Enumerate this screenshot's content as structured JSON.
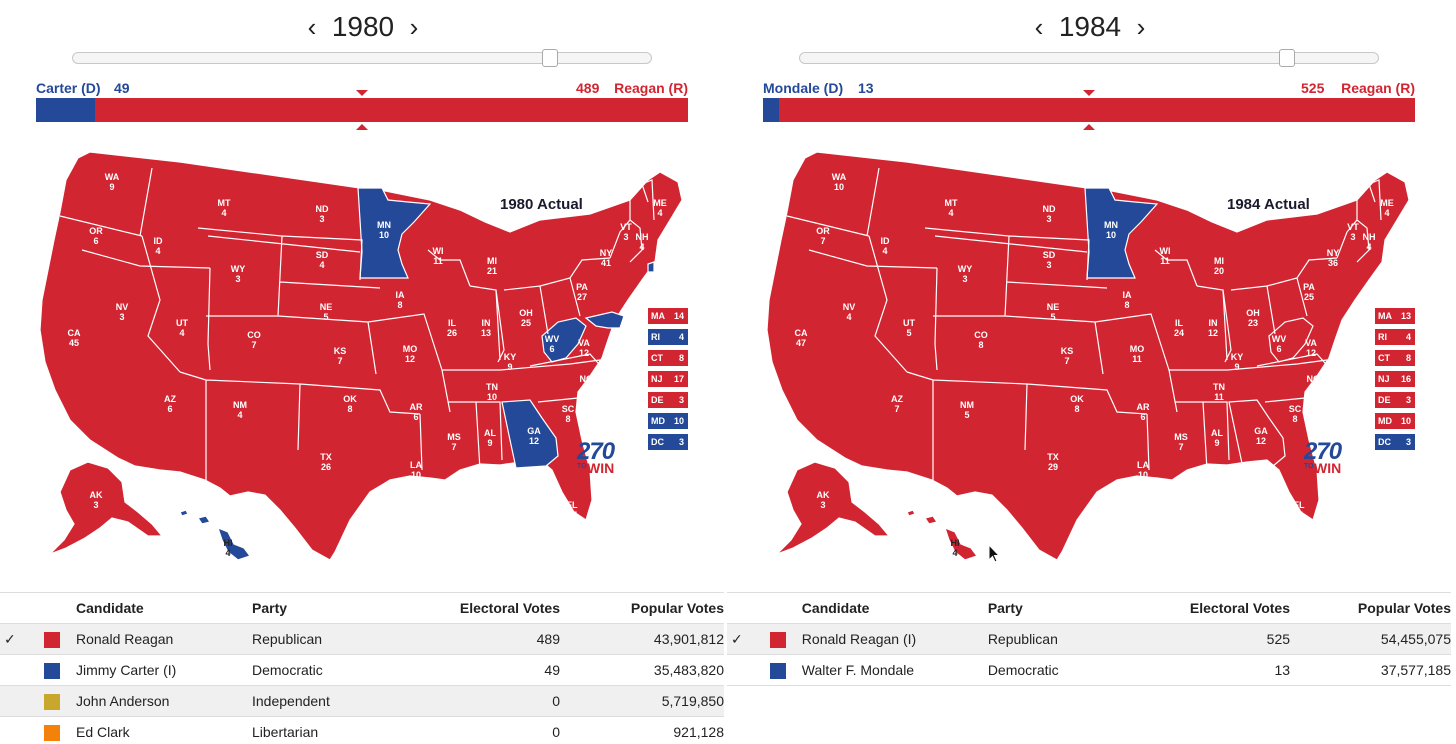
{
  "colors": {
    "rep": "#d22532",
    "dem": "#244999",
    "ind": "#c8a82c",
    "lib": "#f4820a"
  },
  "panels": [
    {
      "year": "1980",
      "prev_icon": "chevron-left-icon",
      "next_icon": "chevron-right-icon",
      "slider_value": 0.83,
      "dem_label": "Carter (D)",
      "dem_ev": "49",
      "rep_ev": "489",
      "rep_label": "Reagan (R)",
      "map_title": "1980 Actual",
      "tiles": [
        {
          "abbr": "MA",
          "ev": "14",
          "party": "rep"
        },
        {
          "abbr": "RI",
          "ev": "4",
          "party": "dem"
        },
        {
          "abbr": "CT",
          "ev": "8",
          "party": "rep"
        },
        {
          "abbr": "NJ",
          "ev": "17",
          "party": "rep"
        },
        {
          "abbr": "DE",
          "ev": "3",
          "party": "rep"
        },
        {
          "abbr": "MD",
          "ev": "10",
          "party": "dem"
        },
        {
          "abbr": "DC",
          "ev": "3",
          "party": "dem"
        }
      ],
      "states": [
        {
          "abbr": "WA",
          "ev": "9"
        },
        {
          "abbr": "OR",
          "ev": "6"
        },
        {
          "abbr": "CA",
          "ev": "45"
        },
        {
          "abbr": "ID",
          "ev": "4"
        },
        {
          "abbr": "NV",
          "ev": "3"
        },
        {
          "abbr": "MT",
          "ev": "4"
        },
        {
          "abbr": "WY",
          "ev": "3"
        },
        {
          "abbr": "UT",
          "ev": "4"
        },
        {
          "abbr": "AZ",
          "ev": "6"
        },
        {
          "abbr": "CO",
          "ev": "7"
        },
        {
          "abbr": "NM",
          "ev": "4"
        },
        {
          "abbr": "ND",
          "ev": "3"
        },
        {
          "abbr": "SD",
          "ev": "4"
        },
        {
          "abbr": "NE",
          "ev": "5"
        },
        {
          "abbr": "KS",
          "ev": "7"
        },
        {
          "abbr": "OK",
          "ev": "8"
        },
        {
          "abbr": "TX",
          "ev": "26"
        },
        {
          "abbr": "MN",
          "ev": "10",
          "dem": true
        },
        {
          "abbr": "IA",
          "ev": "8"
        },
        {
          "abbr": "MO",
          "ev": "12"
        },
        {
          "abbr": "AR",
          "ev": "6"
        },
        {
          "abbr": "LA",
          "ev": "10"
        },
        {
          "abbr": "WI",
          "ev": "11"
        },
        {
          "abbr": "IL",
          "ev": "26"
        },
        {
          "abbr": "MI",
          "ev": "21"
        },
        {
          "abbr": "IN",
          "ev": "13"
        },
        {
          "abbr": "OH",
          "ev": "25"
        },
        {
          "abbr": "KY",
          "ev": "9"
        },
        {
          "abbr": "TN",
          "ev": "10"
        },
        {
          "abbr": "MS",
          "ev": "7"
        },
        {
          "abbr": "AL",
          "ev": "9"
        },
        {
          "abbr": "GA",
          "ev": "12",
          "dem": true
        },
        {
          "abbr": "FL",
          "ev": "17"
        },
        {
          "abbr": "SC",
          "ev": "8"
        },
        {
          "abbr": "NC",
          "ev": "13"
        },
        {
          "abbr": "VA",
          "ev": "12"
        },
        {
          "abbr": "WV",
          "ev": "6",
          "dem": true
        },
        {
          "abbr": "PA",
          "ev": "27"
        },
        {
          "abbr": "NY",
          "ev": "41"
        },
        {
          "abbr": "VT",
          "ev": "3"
        },
        {
          "abbr": "NH",
          "ev": "4"
        },
        {
          "abbr": "ME",
          "ev": "4"
        },
        {
          "abbr": "AK",
          "ev": "3"
        },
        {
          "abbr": "HI",
          "ev": "4",
          "dem": true
        }
      ],
      "table": {
        "headers": [
          "Candidate",
          "Party",
          "Electoral Votes",
          "Popular Votes"
        ],
        "rows": [
          {
            "check": "✓",
            "party_key": "rep",
            "candidate": "Ronald Reagan",
            "party": "Republican",
            "ev": "489",
            "pop": "43,901,812"
          },
          {
            "check": "",
            "party_key": "dem",
            "candidate": "Jimmy Carter (I)",
            "party": "Democratic",
            "ev": "49",
            "pop": "35,483,820"
          },
          {
            "check": "",
            "party_key": "ind",
            "candidate": "John Anderson",
            "party": "Independent",
            "ev": "0",
            "pop": "5,719,850"
          },
          {
            "check": "",
            "party_key": "lib",
            "candidate": "Ed Clark",
            "party": "Libertarian",
            "ev": "0",
            "pop": "921,128"
          }
        ]
      }
    },
    {
      "year": "1984",
      "prev_icon": "chevron-left-icon",
      "next_icon": "chevron-right-icon",
      "slider_value": 0.86,
      "dem_label": "Mondale (D)",
      "dem_ev": "13",
      "rep_ev": "525",
      "rep_label": "Reagan (R)",
      "map_title": "1984 Actual",
      "tiles": [
        {
          "abbr": "MA",
          "ev": "13",
          "party": "rep"
        },
        {
          "abbr": "RI",
          "ev": "4",
          "party": "rep"
        },
        {
          "abbr": "CT",
          "ev": "8",
          "party": "rep"
        },
        {
          "abbr": "NJ",
          "ev": "16",
          "party": "rep"
        },
        {
          "abbr": "DE",
          "ev": "3",
          "party": "rep"
        },
        {
          "abbr": "MD",
          "ev": "10",
          "party": "rep"
        },
        {
          "abbr": "DC",
          "ev": "3",
          "party": "dem"
        }
      ],
      "states": [
        {
          "abbr": "WA",
          "ev": "10"
        },
        {
          "abbr": "OR",
          "ev": "7"
        },
        {
          "abbr": "CA",
          "ev": "47"
        },
        {
          "abbr": "ID",
          "ev": "4"
        },
        {
          "abbr": "NV",
          "ev": "4"
        },
        {
          "abbr": "MT",
          "ev": "4"
        },
        {
          "abbr": "WY",
          "ev": "3"
        },
        {
          "abbr": "UT",
          "ev": "5"
        },
        {
          "abbr": "AZ",
          "ev": "7"
        },
        {
          "abbr": "CO",
          "ev": "8"
        },
        {
          "abbr": "NM",
          "ev": "5"
        },
        {
          "abbr": "ND",
          "ev": "3"
        },
        {
          "abbr": "SD",
          "ev": "3"
        },
        {
          "abbr": "NE",
          "ev": "5"
        },
        {
          "abbr": "KS",
          "ev": "7"
        },
        {
          "abbr": "OK",
          "ev": "8"
        },
        {
          "abbr": "TX",
          "ev": "29"
        },
        {
          "abbr": "MN",
          "ev": "10",
          "dem": true
        },
        {
          "abbr": "IA",
          "ev": "8"
        },
        {
          "abbr": "MO",
          "ev": "11"
        },
        {
          "abbr": "AR",
          "ev": "6"
        },
        {
          "abbr": "LA",
          "ev": "10"
        },
        {
          "abbr": "WI",
          "ev": "11"
        },
        {
          "abbr": "IL",
          "ev": "24"
        },
        {
          "abbr": "MI",
          "ev": "20"
        },
        {
          "abbr": "IN",
          "ev": "12"
        },
        {
          "abbr": "OH",
          "ev": "23"
        },
        {
          "abbr": "KY",
          "ev": "9"
        },
        {
          "abbr": "TN",
          "ev": "11"
        },
        {
          "abbr": "MS",
          "ev": "7"
        },
        {
          "abbr": "AL",
          "ev": "9"
        },
        {
          "abbr": "GA",
          "ev": "12"
        },
        {
          "abbr": "FL",
          "ev": "21"
        },
        {
          "abbr": "SC",
          "ev": "8"
        },
        {
          "abbr": "NC",
          "ev": "13"
        },
        {
          "abbr": "VA",
          "ev": "12"
        },
        {
          "abbr": "WV",
          "ev": "6"
        },
        {
          "abbr": "PA",
          "ev": "25"
        },
        {
          "abbr": "NY",
          "ev": "36"
        },
        {
          "abbr": "VT",
          "ev": "3"
        },
        {
          "abbr": "NH",
          "ev": "4"
        },
        {
          "abbr": "ME",
          "ev": "4"
        },
        {
          "abbr": "AK",
          "ev": "3"
        },
        {
          "abbr": "HI",
          "ev": "4"
        }
      ],
      "table": {
        "headers": [
          "Candidate",
          "Party",
          "Electoral Votes",
          "Popular Votes"
        ],
        "rows": [
          {
            "check": "✓",
            "party_key": "rep",
            "candidate": "Ronald Reagan (I)",
            "party": "Republican",
            "ev": "525",
            "pop": "54,455,075"
          },
          {
            "check": "",
            "party_key": "dem",
            "candidate": "Walter F. Mondale",
            "party": "Democratic",
            "ev": "13",
            "pop": "37,577,185"
          }
        ]
      }
    }
  ],
  "logo": {
    "number": "270",
    "to": "TO",
    "win": "WIN"
  }
}
